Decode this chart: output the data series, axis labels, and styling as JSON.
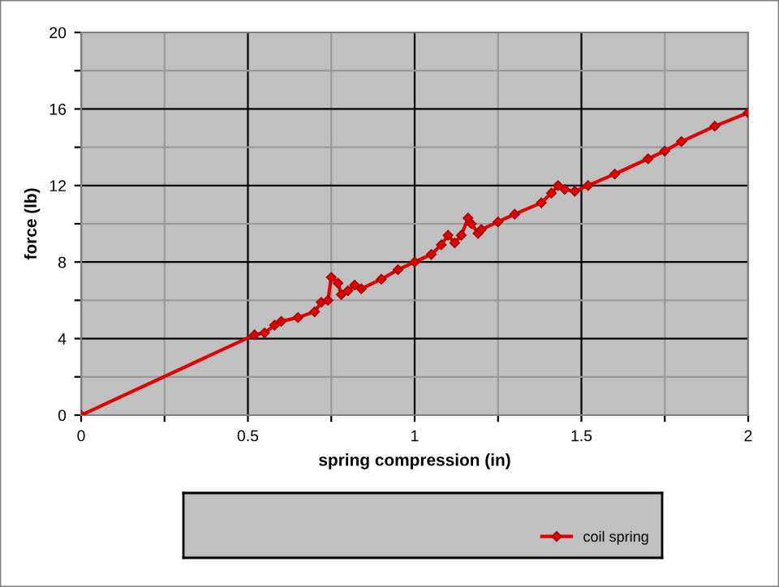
{
  "chart_data": {
    "type": "line",
    "xlabel": "spring compression (in)",
    "ylabel": "force (lb)",
    "x": [
      0,
      0.52,
      0.55,
      0.58,
      0.6,
      0.65,
      0.7,
      0.72,
      0.74,
      0.75,
      0.77,
      0.78,
      0.8,
      0.82,
      0.84,
      0.9,
      0.95,
      1.0,
      1.05,
      1.08,
      1.1,
      1.12,
      1.14,
      1.16,
      1.17,
      1.19,
      1.2,
      1.25,
      1.3,
      1.38,
      1.41,
      1.43,
      1.45,
      1.48,
      1.52,
      1.6,
      1.7,
      1.75,
      1.8,
      1.9,
      2.0
    ],
    "series": [
      {
        "name": "coil spring",
        "color": "#e00000",
        "values": [
          0,
          4.2,
          4.3,
          4.7,
          4.9,
          5.1,
          5.4,
          5.9,
          6.0,
          7.2,
          6.9,
          6.3,
          6.5,
          6.8,
          6.6,
          7.1,
          7.6,
          8.0,
          8.4,
          8.9,
          9.4,
          9.0,
          9.4,
          10.3,
          10.0,
          9.5,
          9.7,
          10.1,
          10.5,
          11.1,
          11.6,
          12.0,
          11.8,
          11.7,
          12.0,
          12.6,
          13.4,
          13.8,
          14.3,
          15.1,
          15.8
        ]
      }
    ],
    "xlim": [
      0,
      2
    ],
    "ylim": [
      0,
      20
    ],
    "xticks": [
      0,
      {
        "value": 0.25,
        "label": null
      },
      0.5,
      {
        "value": 0.75,
        "label": null
      },
      1,
      {
        "value": 1.25,
        "label": null
      },
      1.5,
      {
        "value": 1.75,
        "label": null
      },
      2
    ],
    "yticks": [
      0,
      {
        "value": 2,
        "label": null
      },
      4,
      {
        "value": 6,
        "label": null
      },
      8,
      {
        "value": 10,
        "label": null
      },
      12,
      {
        "value": 14,
        "label": null
      },
      16,
      {
        "value": 18,
        "label": null
      },
      20
    ],
    "grid": true,
    "legend": "bottom",
    "marker": "diamond",
    "line_style": "solid"
  }
}
